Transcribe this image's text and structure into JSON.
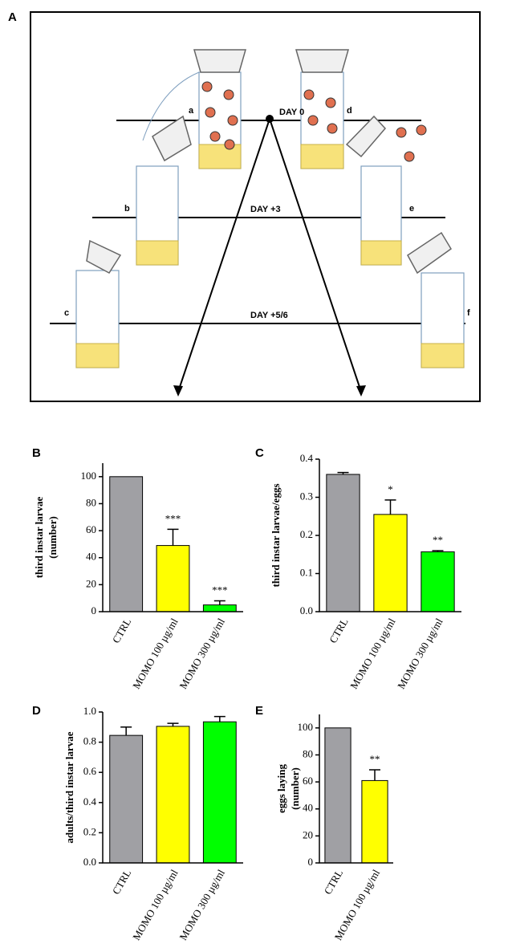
{
  "diagram": {
    "label": "A",
    "days": [
      "DAY 0",
      "DAY +3",
      "DAY +5/6"
    ],
    "tubes": [
      "a",
      "b",
      "c",
      "d",
      "e",
      "f"
    ]
  },
  "chart_data": [
    {
      "type": "bar",
      "label": "B",
      "ylabel": [
        "third instar larvae",
        "(number)"
      ],
      "categories": [
        "CTRL",
        "MOMO 100 µg/ml",
        "MOMO 300 µg/ml"
      ],
      "values": [
        100,
        49,
        5
      ],
      "errors": [
        0,
        12,
        3
      ],
      "annotations": [
        null,
        "***",
        "***"
      ],
      "colors": [
        "#a0a0a4",
        "#ffff00",
        "#00ff00"
      ],
      "ylim": [
        0,
        110
      ],
      "yticks": [
        0,
        20,
        40,
        60,
        80,
        100
      ]
    },
    {
      "type": "bar",
      "label": "C",
      "ylabel": [
        "third instar larvae/eggs"
      ],
      "categories": [
        "CTRL",
        "MOMO 100 µg/ml",
        "MOMO 300 µg/ml"
      ],
      "values": [
        0.36,
        0.255,
        0.157
      ],
      "errors": [
        0.005,
        0.038,
        0.003
      ],
      "annotations": [
        null,
        "*",
        "**"
      ],
      "colors": [
        "#a0a0a4",
        "#ffff00",
        "#00ff00"
      ],
      "ylim": [
        0,
        0.4
      ],
      "yticks": [
        {
          "value": 0,
          "label": "0.0"
        },
        0.1,
        0.2,
        0.3,
        0.4
      ]
    },
    {
      "type": "bar",
      "label": "D",
      "ylabel": [
        "adults/third instar larvae"
      ],
      "categories": [
        "CTRL",
        "MOMO 100 µg/ml",
        "MOMO 300 µg/ml"
      ],
      "values": [
        0.845,
        0.905,
        0.935
      ],
      "errors": [
        0.055,
        0.02,
        0.035
      ],
      "annotations": [
        null,
        null,
        null
      ],
      "colors": [
        "#a0a0a4",
        "#ffff00",
        "#00ff00"
      ],
      "ylim": [
        0,
        1.0
      ],
      "yticks": [
        {
          "value": 0,
          "label": "0.0"
        },
        0.2,
        0.4,
        0.6,
        0.8,
        {
          "value": 1.0,
          "label": "1.0"
        }
      ]
    },
    {
      "type": "bar",
      "label": "E",
      "ylabel": [
        "eggs laying",
        "(number)"
      ],
      "categories": [
        "CTRL",
        "MOMO 100 µg/ml"
      ],
      "values": [
        100,
        61
      ],
      "errors": [
        0,
        8
      ],
      "annotations": [
        null,
        "**"
      ],
      "colors": [
        "#a0a0a4",
        "#ffff00"
      ],
      "ylim": [
        0,
        110
      ],
      "yticks": [
        0,
        20,
        40,
        60,
        80,
        100
      ]
    }
  ]
}
